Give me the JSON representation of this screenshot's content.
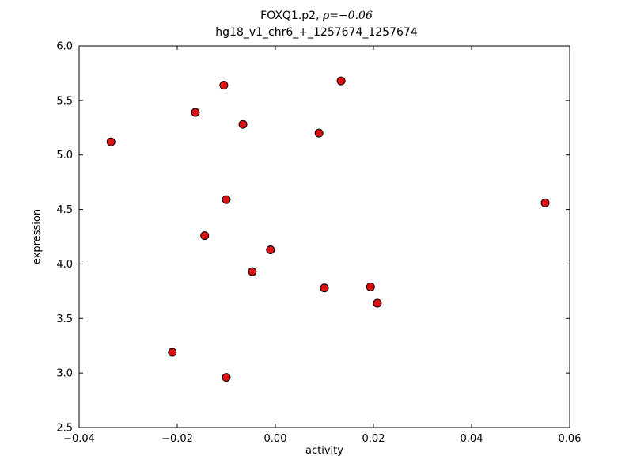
{
  "chart_data": {
    "type": "scatter",
    "title": "FOXQ1.p2, ρ=−0.06",
    "title_prefix": "FOXQ1.p2, ",
    "title_math": "ρ=−0.06",
    "subtitle": "hg18_v1_chr6_+_1257674_1257674",
    "xlabel": "activity",
    "ylabel": "expression",
    "xlim": [
      -0.04,
      0.06
    ],
    "ylim": [
      2.5,
      6.0
    ],
    "x_ticks": [
      -0.04,
      -0.02,
      0.0,
      0.02,
      0.04,
      0.06
    ],
    "x_tick_labels": [
      "−0.04",
      "−0.02",
      "0.00",
      "0.02",
      "0.04",
      "0.06"
    ],
    "y_ticks": [
      2.5,
      3.0,
      3.5,
      4.0,
      4.5,
      5.0,
      5.5,
      6.0
    ],
    "y_tick_labels": [
      "2.5",
      "3.0",
      "3.5",
      "4.0",
      "4.5",
      "5.0",
      "5.5",
      "6.0"
    ],
    "legend": "none",
    "grid": false,
    "marker": {
      "shape": "circle",
      "color": "#dd1111",
      "edge_color": "#000000",
      "radius_px": 5
    },
    "points": [
      {
        "x": -0.0335,
        "y": 5.12
      },
      {
        "x": -0.0163,
        "y": 5.39
      },
      {
        "x": -0.0105,
        "y": 5.64
      },
      {
        "x": -0.0066,
        "y": 5.28
      },
      {
        "x": 0.0089,
        "y": 5.2
      },
      {
        "x": 0.0134,
        "y": 5.68
      },
      {
        "x": 0.055,
        "y": 4.56
      },
      {
        "x": -0.01,
        "y": 4.59
      },
      {
        "x": -0.0144,
        "y": 4.26
      },
      {
        "x": -0.001,
        "y": 4.13
      },
      {
        "x": -0.0047,
        "y": 3.93
      },
      {
        "x": 0.01,
        "y": 3.78
      },
      {
        "x": 0.0194,
        "y": 3.79
      },
      {
        "x": 0.0208,
        "y": 3.64
      },
      {
        "x": -0.021,
        "y": 3.19
      },
      {
        "x": -0.01,
        "y": 2.96
      }
    ]
  }
}
